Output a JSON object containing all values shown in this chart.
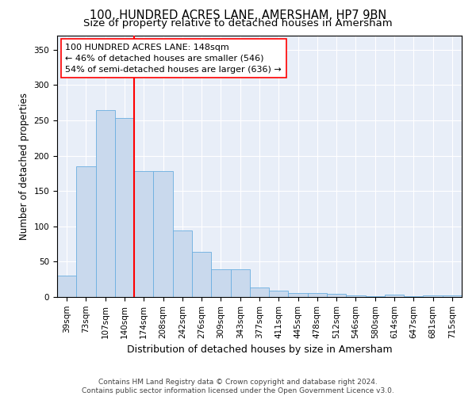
{
  "title": "100, HUNDRED ACRES LANE, AMERSHAM, HP7 9BN",
  "subtitle": "Size of property relative to detached houses in Amersham",
  "xlabel": "Distribution of detached houses by size in Amersham",
  "ylabel": "Number of detached properties",
  "bar_labels": [
    "39sqm",
    "73sqm",
    "107sqm",
    "140sqm",
    "174sqm",
    "208sqm",
    "242sqm",
    "276sqm",
    "309sqm",
    "343sqm",
    "377sqm",
    "411sqm",
    "445sqm",
    "478sqm",
    "512sqm",
    "546sqm",
    "580sqm",
    "614sqm",
    "647sqm",
    "681sqm",
    "715sqm"
  ],
  "bar_values": [
    30,
    185,
    265,
    253,
    178,
    178,
    94,
    64,
    39,
    39,
    13,
    9,
    6,
    6,
    5,
    2,
    1,
    3,
    1,
    2,
    2
  ],
  "bar_color": "#c9d9ed",
  "bar_edge_color": "#6aaee0",
  "vline_x": 3.5,
  "vline_color": "red",
  "annotation_line1": "100 HUNDRED ACRES LANE: 148sqm",
  "annotation_line2": "← 46% of detached houses are smaller (546)",
  "annotation_line3": "54% of semi-detached houses are larger (636) →",
  "annotation_box_color": "white",
  "annotation_box_edge": "red",
  "ylim": [
    0,
    370
  ],
  "yticks": [
    0,
    50,
    100,
    150,
    200,
    250,
    300,
    350
  ],
  "background_color": "#e8eef8",
  "footer": "Contains HM Land Registry data © Crown copyright and database right 2024.\nContains public sector information licensed under the Open Government Licence v3.0.",
  "title_fontsize": 10.5,
  "subtitle_fontsize": 9.5,
  "xlabel_fontsize": 9,
  "ylabel_fontsize": 8.5,
  "tick_fontsize": 7.5,
  "annotation_fontsize": 8,
  "footer_fontsize": 6.5
}
